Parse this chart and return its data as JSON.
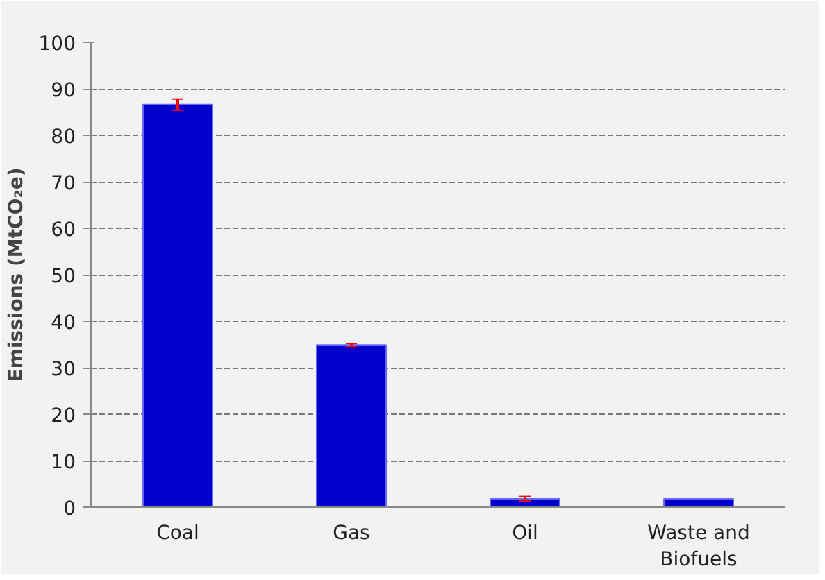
{
  "chart_data": {
    "type": "bar",
    "ylabel": "Emissions (MtCO₂e)",
    "categories": [
      "Coal",
      "Gas",
      "Oil",
      "Waste and Biofuels"
    ],
    "values": [
      86.6,
      34.9,
      1.8,
      1.8
    ],
    "errors": [
      1.2,
      0.3,
      0.5,
      null
    ],
    "color": "#0000cc",
    "ylim": [
      0,
      100
    ],
    "yticks": [
      0,
      10,
      20,
      30,
      40,
      50,
      60,
      70,
      80,
      90,
      100
    ],
    "grid": "y"
  }
}
